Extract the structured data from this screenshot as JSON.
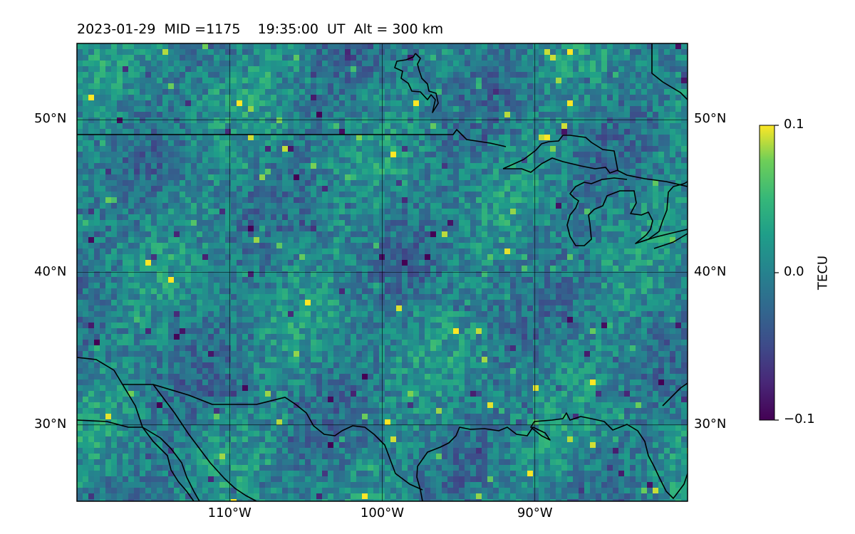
{
  "header": {
    "title": "2023-01-29  MID =1175    19:35:00  UT  Alt = 300 km"
  },
  "map": {
    "extent": {
      "lon": [
        -120,
        -80
      ],
      "lat": [
        25,
        55
      ]
    },
    "lat_ticks": [
      {
        "value": 50,
        "label": "50°N"
      },
      {
        "value": 40,
        "label": "40°N"
      },
      {
        "value": 30,
        "label": "30°N"
      }
    ],
    "lon_ticks": [
      {
        "value": -110,
        "label": "110°W"
      },
      {
        "value": -100,
        "label": "100°W"
      },
      {
        "value": -90,
        "label": "90°W"
      }
    ],
    "colormap": "viridis",
    "grid": true
  },
  "colorbar": {
    "title": "TECU",
    "ticks": [
      {
        "value": 0.1,
        "label": "0.1"
      },
      {
        "value": 0.0,
        "label": "0.0"
      },
      {
        "value": -0.1,
        "label": "−0.1"
      }
    ],
    "range": [
      -0.1,
      0.1
    ]
  }
}
